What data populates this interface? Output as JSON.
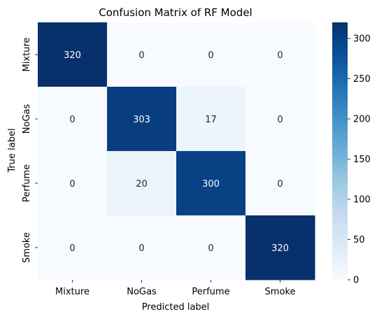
{
  "chart_data": {
    "type": "heatmap",
    "title": "Confusion Matrix of RF Model",
    "xlabel": "Predicted label",
    "ylabel": "True label",
    "x_categories": [
      "Mixture",
      "NoGas",
      "Perfume",
      "Smoke"
    ],
    "y_categories": [
      "Mixture",
      "NoGas",
      "Perfume",
      "Smoke"
    ],
    "values": [
      [
        320,
        0,
        0,
        0
      ],
      [
        0,
        303,
        17,
        0
      ],
      [
        0,
        20,
        300,
        0
      ],
      [
        0,
        0,
        0,
        320
      ]
    ],
    "colorbar": {
      "range": [
        0,
        320
      ],
      "ticks": [
        0,
        50,
        100,
        150,
        200,
        250,
        300
      ]
    },
    "colormap": "Blues",
    "colors": {
      "low": "#f7fbff",
      "high": "#08306b",
      "light_text": "#ffffff",
      "dark_text": "#262626"
    },
    "grid": false,
    "legend": "colorbar-right"
  }
}
